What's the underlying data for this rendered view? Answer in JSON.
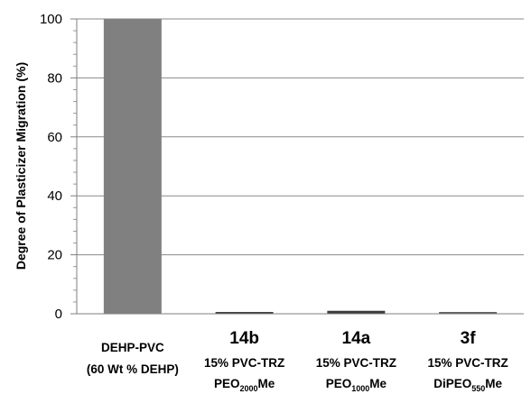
{
  "chart_data": {
    "type": "bar",
    "ylabel": "Degree of Plasticizer Migration (%)",
    "ylim": [
      0,
      100
    ],
    "yticks": [
      "0",
      "20",
      "40",
      "60",
      "80",
      "100"
    ],
    "grid": true,
    "categories": [
      {
        "code": "",
        "line1": "DEHP-PVC",
        "line2": "(60 Wt % DEHP)",
        "line3_main": "",
        "line3_sub": "",
        "line3_tail": ""
      },
      {
        "code": "14b",
        "line1": "",
        "line2": "15% PVC-TRZ",
        "line3_main": "PEO",
        "line3_sub": "2000",
        "line3_tail": "Me"
      },
      {
        "code": "14a",
        "line1": "",
        "line2": "15% PVC-TRZ",
        "line3_main": "PEO",
        "line3_sub": "1000",
        "line3_tail": "Me"
      },
      {
        "code": "3f",
        "line1": "",
        "line2": "15% PVC-TRZ",
        "line3_main": "DiPEO",
        "line3_sub": "550",
        "line3_tail": "Me"
      }
    ],
    "values": [
      100,
      0.6,
      1.0,
      0.6
    ],
    "bar_colors": [
      "#808080",
      "#3a3a3a",
      "#3a3a3a",
      "#5a5a5a"
    ]
  }
}
